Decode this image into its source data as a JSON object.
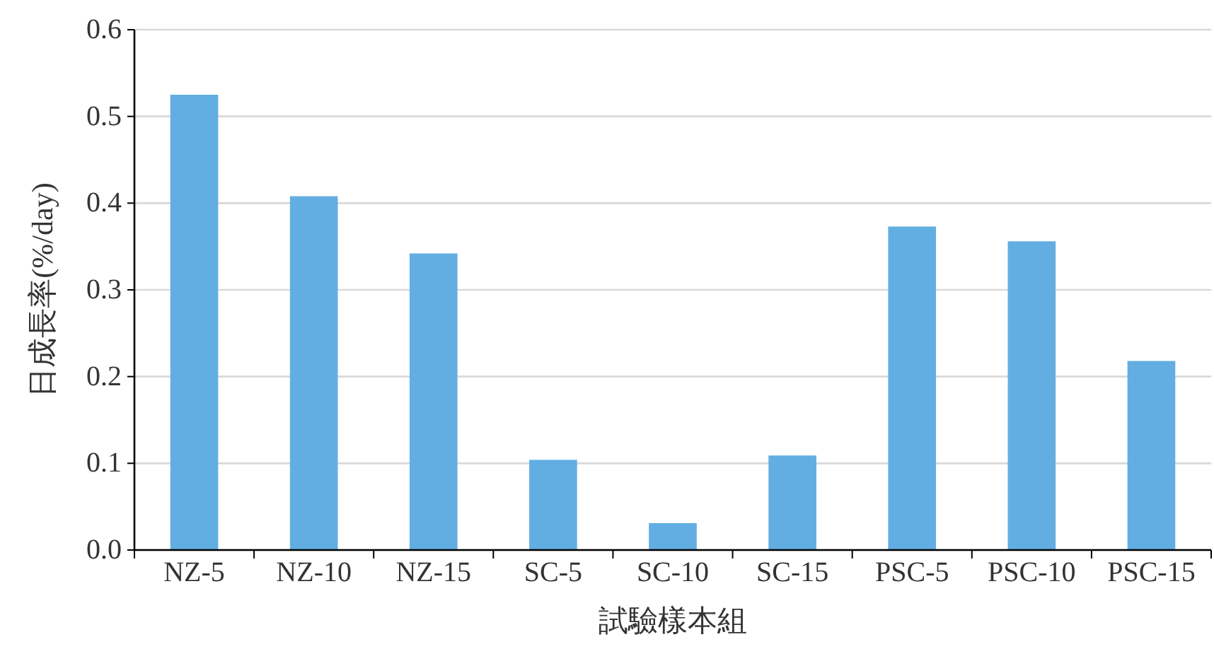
{
  "chart_data": {
    "type": "bar",
    "xlabel": "試驗樣本組",
    "ylabel": "日成長率(%/day)",
    "categories": [
      "NZ-5",
      "NZ-10",
      "NZ-15",
      "SC-5",
      "SC-10",
      "SC-15",
      "PSC-5",
      "PSC-10",
      "PSC-15"
    ],
    "values": [
      0.525,
      0.408,
      0.342,
      0.104,
      0.031,
      0.109,
      0.373,
      0.356,
      0.218
    ],
    "color": "#62aee2",
    "ylim": [
      0,
      0.6
    ],
    "yticks": [
      {
        "value": 0,
        "label": "0.0"
      },
      0.1,
      0.2,
      0.3,
      0.4,
      0.5,
      0.6
    ],
    "grid": "y"
  }
}
